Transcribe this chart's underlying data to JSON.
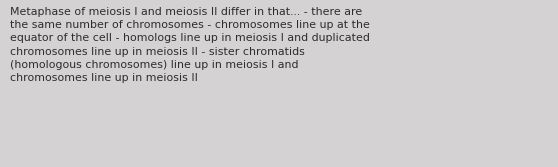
{
  "text": "Metaphase of meiosis I and meiosis II differ in that... - there are\nthe same number of chromosomes - chromosomes line up at the\nequator of the cell - homologs line up in meiosis I and duplicated\nchromosomes line up in meiosis II - sister chromatids\n(homologous chromosomes) line up in meiosis I and\nchromosomes line up in meiosis II",
  "background_color": "#d4d2d2",
  "text_color": "#2e2c2c",
  "font_size": 7.9,
  "fig_width": 5.58,
  "fig_height": 1.67,
  "dpi": 100
}
